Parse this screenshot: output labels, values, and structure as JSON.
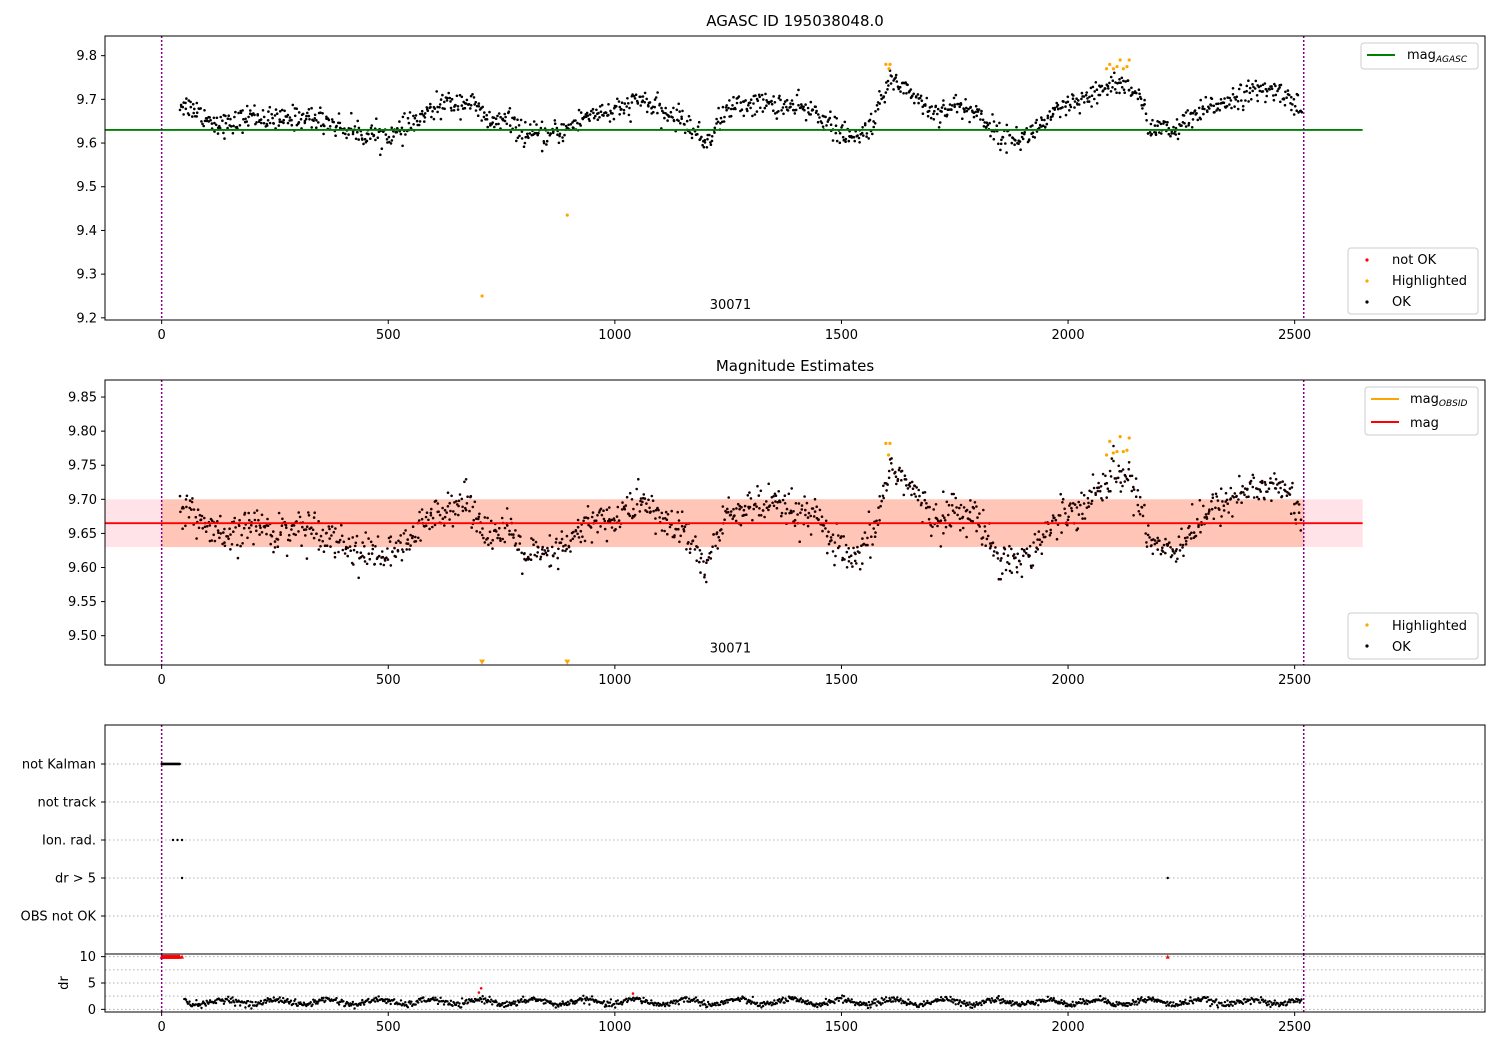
{
  "chart_data": [
    {
      "id": "agasc-panel",
      "type": "scatter",
      "title": "AGASC ID 195038048.0",
      "xlabel": "",
      "ylabel": "",
      "xlim": [
        -125,
        2920
      ],
      "ylim": [
        9.195,
        9.845
      ],
      "xticks": [
        0,
        500,
        1000,
        1500,
        2000,
        2500
      ],
      "yticks": [
        9.2,
        9.3,
        9.4,
        9.5,
        9.6,
        9.7,
        9.8
      ],
      "ytick_labels": [
        "9.2",
        "9.3",
        "9.4",
        "9.5",
        "9.6",
        "9.7",
        "9.8"
      ],
      "grid": false,
      "vlines": [
        0,
        2520
      ],
      "vline_color": "#800080",
      "hline": {
        "y": 9.63,
        "x": [
          -125,
          2650
        ],
        "color": "#008000",
        "label": "mag",
        "label_sub": "AGASC"
      },
      "annotation": {
        "text": "30071",
        "x": 1255,
        "y": 9.22
      },
      "legend_top": {
        "position": "top-right",
        "entries": [
          {
            "label": "mag",
            "sub": "AGASC",
            "color": "#008000",
            "kind": "line"
          }
        ]
      },
      "legend_bottom": {
        "position": "bottom-right",
        "entries": [
          {
            "label": "not OK",
            "color": "#ff0000",
            "kind": "dot"
          },
          {
            "label": "Highlighted",
            "color": "#ffa500",
            "kind": "dot"
          },
          {
            "label": "OK",
            "color": "#000000",
            "kind": "dot"
          }
        ]
      },
      "series": [
        {
          "name": "Highlighted",
          "color": "#ffa500",
          "points": [
            [
              707,
              9.25
            ],
            [
              895,
              9.435
            ],
            [
              1598,
              9.78
            ],
            [
              1607,
              9.78
            ],
            [
              1605,
              9.77
            ],
            [
              2085,
              9.77
            ],
            [
              2092,
              9.78
            ],
            [
              2100,
              9.77
            ],
            [
              2108,
              9.775
            ],
            [
              2115,
              9.79
            ],
            [
              2122,
              9.77
            ],
            [
              2135,
              9.79
            ],
            [
              2130,
              9.775
            ]
          ]
        }
      ],
      "ok_trend": [
        [
          40,
          9.69
        ],
        [
          70,
          9.68
        ],
        [
          110,
          9.65
        ],
        [
          150,
          9.64
        ],
        [
          200,
          9.665
        ],
        [
          250,
          9.65
        ],
        [
          300,
          9.66
        ],
        [
          350,
          9.655
        ],
        [
          400,
          9.635
        ],
        [
          450,
          9.62
        ],
        [
          520,
          9.62
        ],
        [
          570,
          9.655
        ],
        [
          620,
          9.69
        ],
        [
          680,
          9.695
        ],
        [
          720,
          9.65
        ],
        [
          770,
          9.65
        ],
        [
          800,
          9.62
        ],
        [
          850,
          9.615
        ],
        [
          900,
          9.635
        ],
        [
          950,
          9.67
        ],
        [
          1000,
          9.67
        ],
        [
          1060,
          9.7
        ],
        [
          1100,
          9.67
        ],
        [
          1150,
          9.655
        ],
        [
          1200,
          9.6
        ],
        [
          1250,
          9.68
        ],
        [
          1300,
          9.69
        ],
        [
          1350,
          9.69
        ],
        [
          1400,
          9.68
        ],
        [
          1450,
          9.67
        ],
        [
          1480,
          9.635
        ],
        [
          1530,
          9.605
        ],
        [
          1570,
          9.65
        ],
        [
          1610,
          9.75
        ],
        [
          1650,
          9.72
        ],
        [
          1700,
          9.67
        ],
        [
          1750,
          9.685
        ],
        [
          1800,
          9.67
        ],
        [
          1850,
          9.615
        ],
        [
          1900,
          9.61
        ],
        [
          1950,
          9.65
        ],
        [
          2000,
          9.685
        ],
        [
          2050,
          9.7
        ],
        [
          2100,
          9.74
        ],
        [
          2150,
          9.72
        ],
        [
          2180,
          9.64
        ],
        [
          2230,
          9.625
        ],
        [
          2280,
          9.66
        ],
        [
          2330,
          9.69
        ],
        [
          2380,
          9.71
        ],
        [
          2430,
          9.72
        ],
        [
          2480,
          9.715
        ],
        [
          2515,
          9.67
        ]
      ],
      "ok_x_range": [
        40,
        2515
      ],
      "ok_count": 1300,
      "ok_spread": 0.03,
      "ok_color": "#000000"
    },
    {
      "id": "mag-estimates-panel",
      "type": "scatter",
      "title": "Magnitude Estimates",
      "xlabel": "",
      "ylabel": "",
      "xlim": [
        -125,
        2920
      ],
      "ylim": [
        9.457,
        9.875
      ],
      "xticks": [
        0,
        500,
        1000,
        1500,
        2000,
        2500
      ],
      "yticks": [
        9.5,
        9.55,
        9.6,
        9.65,
        9.7,
        9.75,
        9.8,
        9.85
      ],
      "ytick_labels": [
        "9.50",
        "9.55",
        "9.60",
        "9.65",
        "9.70",
        "9.75",
        "9.80",
        "9.85"
      ],
      "grid": false,
      "vlines": [
        0,
        2520
      ],
      "vline_color": "#800080",
      "band_pink": {
        "y": [
          9.63,
          9.7
        ],
        "x": [
          -125,
          2650
        ],
        "color": "#ffc0cb"
      },
      "band_orange": {
        "y": [
          9.63,
          9.7
        ],
        "x": [
          0,
          2520
        ],
        "color": "#ffa07a"
      },
      "hline": {
        "y": 9.665,
        "x": [
          -125,
          2650
        ],
        "color": "#ff0000",
        "label": "mag"
      },
      "annotation": {
        "text": "30071",
        "x": 1255,
        "y": 9.475
      },
      "legend_top": {
        "position": "top-right",
        "entries": [
          {
            "label": "mag",
            "sub": "OBSID",
            "color": "#ffa500",
            "kind": "line"
          },
          {
            "label": "mag",
            "color": "#ff0000",
            "kind": "line"
          }
        ]
      },
      "legend_bottom": {
        "position": "bottom-right",
        "entries": [
          {
            "label": "Highlighted",
            "color": "#ffa500",
            "kind": "dot"
          },
          {
            "label": "OK",
            "color": "#000000",
            "kind": "dot"
          }
        ]
      },
      "series": [
        {
          "name": "Highlighted",
          "color": "#ffa500",
          "points": [
            [
              1598,
              9.782
            ],
            [
              1607,
              9.782
            ],
            [
              1604,
              9.765
            ],
            [
              2085,
              9.765
            ],
            [
              2092,
              9.785
            ],
            [
              2100,
              9.768
            ],
            [
              2108,
              9.77
            ],
            [
              2115,
              9.792
            ],
            [
              2122,
              9.77
            ],
            [
              2135,
              9.79
            ],
            [
              2130,
              9.772
            ]
          ]
        }
      ],
      "down_markers": [
        [
          707,
          9.459
        ],
        [
          895,
          9.459
        ]
      ],
      "ok_trend": [
        [
          40,
          9.69
        ],
        [
          70,
          9.68
        ],
        [
          110,
          9.65
        ],
        [
          150,
          9.64
        ],
        [
          200,
          9.665
        ],
        [
          250,
          9.65
        ],
        [
          300,
          9.66
        ],
        [
          350,
          9.655
        ],
        [
          400,
          9.635
        ],
        [
          450,
          9.62
        ],
        [
          520,
          9.62
        ],
        [
          570,
          9.655
        ],
        [
          620,
          9.69
        ],
        [
          680,
          9.695
        ],
        [
          720,
          9.65
        ],
        [
          770,
          9.65
        ],
        [
          800,
          9.62
        ],
        [
          850,
          9.615
        ],
        [
          900,
          9.635
        ],
        [
          950,
          9.67
        ],
        [
          1000,
          9.67
        ],
        [
          1060,
          9.7
        ],
        [
          1100,
          9.67
        ],
        [
          1150,
          9.655
        ],
        [
          1200,
          9.6
        ],
        [
          1250,
          9.68
        ],
        [
          1300,
          9.69
        ],
        [
          1350,
          9.69
        ],
        [
          1400,
          9.68
        ],
        [
          1450,
          9.67
        ],
        [
          1480,
          9.635
        ],
        [
          1530,
          9.605
        ],
        [
          1570,
          9.65
        ],
        [
          1610,
          9.75
        ],
        [
          1650,
          9.72
        ],
        [
          1700,
          9.67
        ],
        [
          1750,
          9.685
        ],
        [
          1800,
          9.67
        ],
        [
          1850,
          9.615
        ],
        [
          1900,
          9.61
        ],
        [
          1950,
          9.65
        ],
        [
          2000,
          9.685
        ],
        [
          2050,
          9.7
        ],
        [
          2100,
          9.74
        ],
        [
          2150,
          9.72
        ],
        [
          2180,
          9.64
        ],
        [
          2230,
          9.625
        ],
        [
          2280,
          9.66
        ],
        [
          2330,
          9.69
        ],
        [
          2380,
          9.71
        ],
        [
          2430,
          9.72
        ],
        [
          2480,
          9.715
        ],
        [
          2515,
          9.67
        ]
      ],
      "ok_x_range": [
        40,
        2515
      ],
      "ok_count": 1300,
      "ok_spread": 0.03,
      "ok_color": "#1a0000"
    },
    {
      "id": "flags-panel",
      "type": "scatter",
      "title": "",
      "xlim": [
        -125,
        2920
      ],
      "categories": [
        "not Kalman",
        "not track",
        "Ion. rad.",
        "dr > 5",
        "OBS not OK"
      ],
      "grid": "horizontal-dotted",
      "vlines": [
        0,
        2520
      ],
      "vline_color": "#800080",
      "flag_points": {
        "not Kalman": {
          "x_range": [
            0,
            40
          ],
          "count": 40
        },
        "not track": {
          "x_range": null,
          "count": 0
        },
        "Ion. rad.": {
          "points": [
            25,
            35,
            45
          ]
        },
        "dr > 5": {
          "points": [
            45,
            2220
          ]
        },
        "OBS not OK": {
          "x_range": null,
          "count": 0
        }
      }
    },
    {
      "id": "dr-panel",
      "type": "scatter",
      "title": "",
      "ylabel": "dr",
      "xlim": [
        -125,
        2920
      ],
      "ylim": [
        -0.5,
        10.5
      ],
      "xticks": [
        0,
        500,
        1000,
        1500,
        2000,
        2500
      ],
      "yticks": [
        0,
        5,
        10
      ],
      "ytick_labels": [
        "0",
        "5",
        "10"
      ],
      "grid": "horizontal-dotted",
      "vlines": [
        0,
        2520
      ],
      "vline_color": "#800080",
      "capped_points": {
        "color": "#ff0000",
        "y": 10,
        "x_range": [
          0,
          40
        ],
        "extra": [
          45,
          2220
        ]
      },
      "red_points": [
        [
          705,
          4
        ],
        [
          700,
          3.2
        ],
        [
          1040,
          3.0
        ]
      ],
      "ok_x_range": [
        50,
        2515
      ],
      "ok_count": 1300,
      "ok_mean": 1.4,
      "ok_spread": 0.6
    }
  ]
}
